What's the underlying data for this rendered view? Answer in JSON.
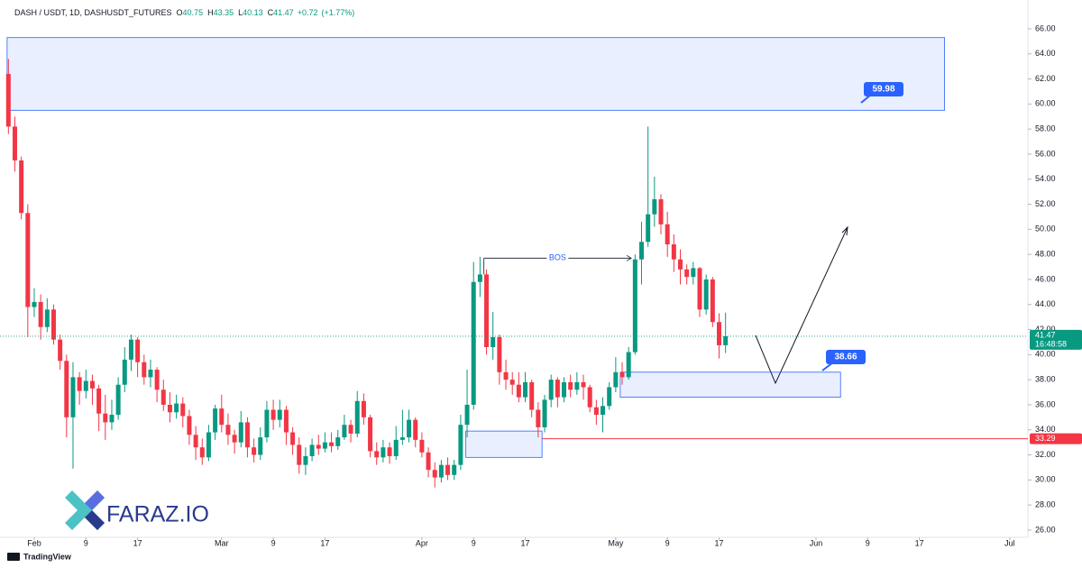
{
  "chart_data": {
    "type": "candlestick",
    "title": "DASH / USDT, 1D, DASHUSDT_FUTURES",
    "ohlc_labels": [
      "O",
      "H",
      "L",
      "C"
    ],
    "change": "+0.72",
    "change_pct": "(+1.77%)",
    "countdown": "16:48:58",
    "up_color": "#089981",
    "down_color": "#f23645",
    "grid": false,
    "x": [
      -4,
      -3,
      -2,
      -1,
      0,
      1,
      2,
      3,
      4,
      5,
      6,
      7,
      8,
      9,
      10,
      11,
      12,
      13,
      14,
      15,
      16,
      17,
      18,
      19,
      20,
      21,
      22,
      23,
      24,
      25,
      26,
      27,
      28,
      29,
      30,
      31,
      32,
      33,
      34,
      35,
      36,
      37,
      38,
      39,
      40,
      41,
      42,
      43,
      44,
      45,
      46,
      47,
      48,
      49,
      50,
      51,
      52,
      53,
      54,
      55,
      56,
      57,
      58,
      59,
      60,
      61,
      62,
      63,
      64,
      65,
      66,
      67,
      68,
      69,
      70,
      71,
      72,
      73,
      74,
      75,
      76,
      77,
      78,
      79,
      80,
      81,
      82,
      83,
      84,
      85,
      86,
      87,
      88,
      89,
      90,
      91,
      92,
      93,
      94,
      95,
      96,
      97,
      98,
      99,
      100,
      101,
      102,
      103,
      104,
      105,
      106,
      107
    ],
    "open": [
      62.4,
      58.2,
      55.5,
      51.3,
      43.8,
      44.2,
      42.2,
      43.6,
      41.2,
      39.5,
      35,
      38.2,
      37.1,
      37.9,
      37.3,
      35.3,
      34.6,
      35.2,
      37.6,
      39.6,
      41.2,
      39.4,
      38.2,
      38.8,
      37.2,
      36,
      35.4,
      36.1,
      35.1,
      33.6,
      32.6,
      31.8,
      33.8,
      35.7,
      34.4,
      33.6,
      33,
      34.6,
      32.6,
      32,
      33.4,
      35.6,
      34.8,
      35.6,
      33.8,
      32.8,
      31.2,
      31.9,
      32.8,
      32.5,
      33,
      32.7,
      33.4,
      34.4,
      33.7,
      36.3,
      35,
      32.3,
      31.8,
      32.6,
      31.9,
      33.2,
      33.4,
      34.8,
      33.2,
      32.2,
      30.8,
      30.2,
      31.2,
      30.4,
      31.2,
      34.4,
      36,
      45.8,
      46.4,
      40.6,
      41.4,
      38.6,
      38,
      37.6,
      36.6,
      37.8,
      35.6,
      34.2,
      36.4,
      38,
      36.6,
      37.8,
      37.2,
      37.8,
      37.4,
      35.8,
      35.2,
      35.9,
      37.4,
      38.6,
      38.2,
      40.2,
      47.6,
      49,
      51.2,
      52.4,
      50.4,
      48.8,
      47.6,
      46.8,
      46.2,
      46.9,
      43.6,
      46,
      42.6,
      40.75
    ],
    "high": [
      63.6,
      59,
      55.8,
      52,
      45.3,
      44.8,
      44.5,
      44,
      41.6,
      40,
      39.4,
      38.6,
      38.8,
      38.4,
      37.6,
      36.8,
      36.4,
      38.2,
      40.6,
      41.6,
      41.4,
      40,
      39.6,
      39,
      38,
      37,
      36.8,
      36.6,
      35.6,
      34.3,
      33.3,
      34.4,
      36,
      36.8,
      35.3,
      34,
      35.5,
      35,
      33.3,
      34.2,
      36.3,
      36.4,
      36.4,
      35.9,
      34.2,
      33.4,
      32.6,
      33.3,
      33.6,
      33.8,
      33.8,
      34,
      35.2,
      34.8,
      37.1,
      36.9,
      35.2,
      33,
      33.2,
      33,
      34.3,
      35.6,
      35.6,
      35,
      33.8,
      32.6,
      31.4,
      31.6,
      31.8,
      31.6,
      35.2,
      38.8,
      47.4,
      47.8,
      46.8,
      43.4,
      41.6,
      39.6,
      38.6,
      38.6,
      38.6,
      38,
      36.2,
      36.8,
      38.4,
      38.2,
      38.2,
      38.4,
      38.6,
      38.4,
      37.6,
      36.4,
      36.6,
      37.8,
      39.8,
      39.4,
      40.6,
      48,
      50.6,
      58.2,
      54.2,
      52.8,
      51.4,
      49.6,
      48.4,
      47.2,
      47.4,
      47,
      46.4,
      46.2,
      43.3,
      43.35
    ],
    "low": [
      57.6,
      54.6,
      50.8,
      41.4,
      43,
      41.2,
      41.8,
      40.8,
      38.8,
      33.4,
      30.9,
      36,
      36.5,
      36,
      33.9,
      33.2,
      34,
      34.8,
      37,
      38.7,
      38.2,
      37.6,
      37.4,
      36.2,
      35.5,
      34.6,
      34.9,
      34.2,
      32.8,
      31.6,
      31.2,
      31.5,
      33.2,
      33.8,
      32.8,
      32.1,
      32.6,
      31.8,
      31.4,
      31.6,
      33,
      34,
      34.2,
      32.8,
      32,
      30.5,
      30.4,
      31.5,
      32,
      32.2,
      32.2,
      32.4,
      33.2,
      33,
      33.4,
      34.4,
      31.8,
      31.2,
      31.4,
      31.3,
      31.6,
      32.8,
      33,
      32.6,
      31.8,
      30.2,
      29.4,
      29.8,
      30,
      30,
      30.8,
      33.4,
      35.6,
      44.6,
      40,
      39.6,
      37.6,
      37.2,
      36.8,
      36.2,
      36.2,
      35,
      33.4,
      33.8,
      35.8,
      35.8,
      36.2,
      36.6,
      36.8,
      36.4,
      35.4,
      34.4,
      33.8,
      35.6,
      37,
      37.6,
      38,
      40,
      45.6,
      48.6,
      50.2,
      49.6,
      47.8,
      46.6,
      45.6,
      45.6,
      45.6,
      43,
      43.2,
      42.2,
      39.7,
      40.13
    ],
    "close": [
      58.2,
      55.5,
      51.3,
      43.8,
      44.2,
      42.2,
      43.6,
      41.2,
      39.5,
      35,
      38.2,
      37.1,
      37.9,
      37.3,
      35.3,
      34.6,
      35.2,
      37.6,
      39.6,
      41.2,
      39.4,
      38.2,
      38.8,
      37.2,
      36,
      35.4,
      36.1,
      35.1,
      33.6,
      32.6,
      31.8,
      33.8,
      35.7,
      34.4,
      33.6,
      33,
      34.6,
      32.6,
      32,
      33.4,
      35.6,
      34.8,
      35.6,
      33.8,
      32.8,
      31.2,
      31.9,
      32.8,
      32.5,
      33,
      32.7,
      33.4,
      34.4,
      33.7,
      36.3,
      35,
      32.3,
      31.8,
      32.6,
      31.9,
      33.2,
      33.4,
      34.8,
      33.2,
      32.2,
      30.8,
      30.2,
      31.2,
      30.4,
      31.2,
      34.4,
      36,
      45.8,
      46.4,
      40.6,
      41.4,
      38.6,
      38,
      37.6,
      36.6,
      37.8,
      35.6,
      34.2,
      36.4,
      38,
      36.6,
      37.8,
      37.2,
      37.8,
      37.4,
      35.8,
      35.2,
      35.9,
      37.4,
      38.6,
      38.2,
      40.2,
      47.6,
      49,
      51.2,
      52.4,
      50.4,
      48.8,
      47.6,
      46.8,
      46.2,
      46.9,
      43.6,
      46,
      42.6,
      40.75,
      41.47
    ],
    "xlim": [
      -5.3,
      153.8
    ],
    "ylim": [
      25.42,
      68.3
    ],
    "xticks": [
      {
        "value": 0,
        "label": "Feb"
      },
      {
        "value": 8,
        "label": "9"
      },
      {
        "value": 16,
        "label": "17"
      },
      {
        "value": 29,
        "label": "Mar"
      },
      {
        "value": 37,
        "label": "9"
      },
      {
        "value": 45,
        "label": "17"
      },
      {
        "value": 60,
        "label": "Apr"
      },
      {
        "value": 68,
        "label": "9"
      },
      {
        "value": 76,
        "label": "17"
      },
      {
        "value": 90,
        "label": "May"
      },
      {
        "value": 98,
        "label": "9"
      },
      {
        "value": 106,
        "label": "17"
      },
      {
        "value": 121,
        "label": "Jun"
      },
      {
        "value": 129,
        "label": "9"
      },
      {
        "value": 137,
        "label": "17"
      },
      {
        "value": 151,
        "label": "Jul"
      }
    ],
    "yticks": [
      {
        "value": 26,
        "label": "26.00"
      },
      {
        "value": 28,
        "label": "28.00"
      },
      {
        "value": 30,
        "label": "30.00"
      },
      {
        "value": 32,
        "label": "32.00"
      },
      {
        "value": 34,
        "label": "34.00"
      },
      {
        "value": 36,
        "label": "36.00"
      },
      {
        "value": 38,
        "label": "38.00"
      },
      {
        "value": 40,
        "label": "40.00"
      },
      {
        "value": 42,
        "label": "42.00"
      },
      {
        "value": 44,
        "label": "44.00"
      },
      {
        "value": 46,
        "label": "46.00"
      },
      {
        "value": 48,
        "label": "48.00"
      },
      {
        "value": 50,
        "label": "50.00"
      },
      {
        "value": 52,
        "label": "52.00"
      },
      {
        "value": 54,
        "label": "54.00"
      },
      {
        "value": 56,
        "label": "56.00"
      },
      {
        "value": 58,
        "label": "58.00"
      },
      {
        "value": 60,
        "label": "60.00"
      },
      {
        "value": 62,
        "label": "62.00"
      },
      {
        "value": 64,
        "label": "64.00"
      },
      {
        "value": 66,
        "label": "66.00"
      }
    ],
    "zones": [
      {
        "top": 65.3,
        "bottom": 59.5,
        "start": -4.2,
        "end": 140.9,
        "label": 59.98
      },
      {
        "top": 38.6,
        "bottom": 36.6,
        "start": 90.7,
        "end": 124.8,
        "label": 38.66
      },
      {
        "top": 33.9,
        "bottom": 31.8,
        "start": 66.8,
        "end": 78.6
      }
    ],
    "level": {
      "value": 33.29,
      "start": 78.6,
      "color": "#f23645"
    },
    "bos": {
      "text": "BOS",
      "price": 47.7,
      "start": 69.6,
      "end": 92.4
    },
    "brand": "FARAZ.IO",
    "footer": "TradingView"
  }
}
